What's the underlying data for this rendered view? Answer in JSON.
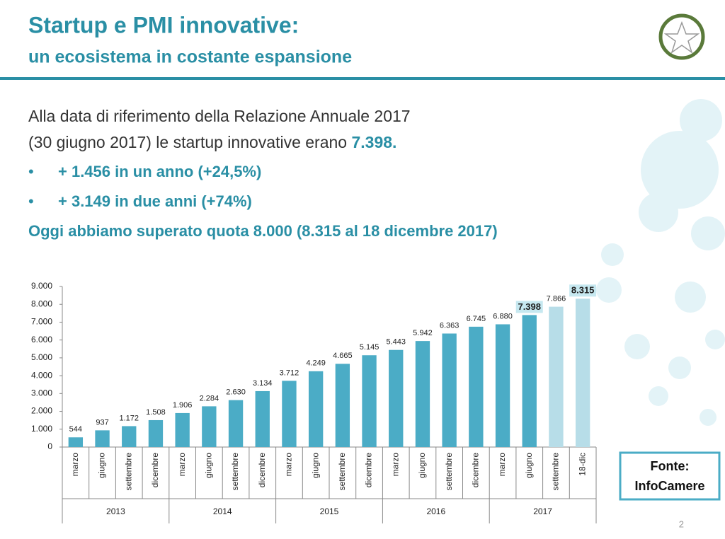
{
  "header": {
    "title": "Startup e PMI innovative:",
    "subtitle": "un ecosistema in costante espansione"
  },
  "intro": {
    "line1": "Alla data di riferimento della Relazione Annuale 2017",
    "line2": "(30 giugno 2017) le startup innovative erano ",
    "highlight": "7.398."
  },
  "bullets": [
    "+ 1.456 in un anno (+24,5%)",
    "+ 3.149 in due anni (+74%)"
  ],
  "conclusion": "Oggi abbiamo superato quota 8.000 (8.315 al 18 dicembre 2017)",
  "source": {
    "line1": "Fonte:",
    "line2": "InfoCamere"
  },
  "page_number": "2",
  "chart_data": {
    "type": "bar",
    "categories": [
      "marzo",
      "giugno",
      "settembre",
      "dicembre",
      "marzo",
      "giugno",
      "settembre",
      "dicembre",
      "marzo",
      "giugno",
      "settembre",
      "dicembre",
      "marzo",
      "giugno",
      "settembre",
      "dicembre",
      "marzo",
      "giugno",
      "settembre",
      "18-dic"
    ],
    "groups": [
      {
        "label": "2013",
        "span": 4
      },
      {
        "label": "2014",
        "span": 4
      },
      {
        "label": "2015",
        "span": 4
      },
      {
        "label": "2016",
        "span": 4
      },
      {
        "label": "2017",
        "span": 4
      }
    ],
    "values": [
      544,
      937,
      1172,
      1508,
      1906,
      2284,
      2630,
      3134,
      3712,
      4249,
      4665,
      5145,
      5443,
      5942,
      6363,
      6745,
      6880,
      7398,
      7866,
      8315
    ],
    "value_labels": [
      "544",
      "937",
      "1.172",
      "1.508",
      "1.906",
      "2.284",
      "2.630",
      "3.134",
      "3.712",
      "4.249",
      "4.665",
      "5.145",
      "5.443",
      "5.942",
      "6.363",
      "6.745",
      "6.880",
      "7.398",
      "7.866",
      "8.315"
    ],
    "colors": [
      "#4bacc6",
      "#4bacc6",
      "#4bacc6",
      "#4bacc6",
      "#4bacc6",
      "#4bacc6",
      "#4bacc6",
      "#4bacc6",
      "#4bacc6",
      "#4bacc6",
      "#4bacc6",
      "#4bacc6",
      "#4bacc6",
      "#4bacc6",
      "#4bacc6",
      "#4bacc6",
      "#4bacc6",
      "#4bacc6",
      "#b7dde8",
      "#b7dde8"
    ],
    "highlighted_labels": [
      17,
      19
    ],
    "ylim": [
      0,
      9000
    ],
    "yticks": [
      0,
      {
        "value": 1000,
        "label": "1.000"
      },
      {
        "value": 2000,
        "label": "2.000"
      },
      {
        "value": 3000,
        "label": "3.000"
      },
      {
        "value": 4000,
        "label": "4.000"
      },
      {
        "value": 5000,
        "label": "5.000"
      },
      {
        "value": 6000,
        "label": "6.000"
      },
      {
        "value": 7000,
        "label": "7.000"
      },
      {
        "value": 8000,
        "label": "8.000"
      },
      {
        "value": 9000,
        "label": "9.000"
      }
    ]
  }
}
